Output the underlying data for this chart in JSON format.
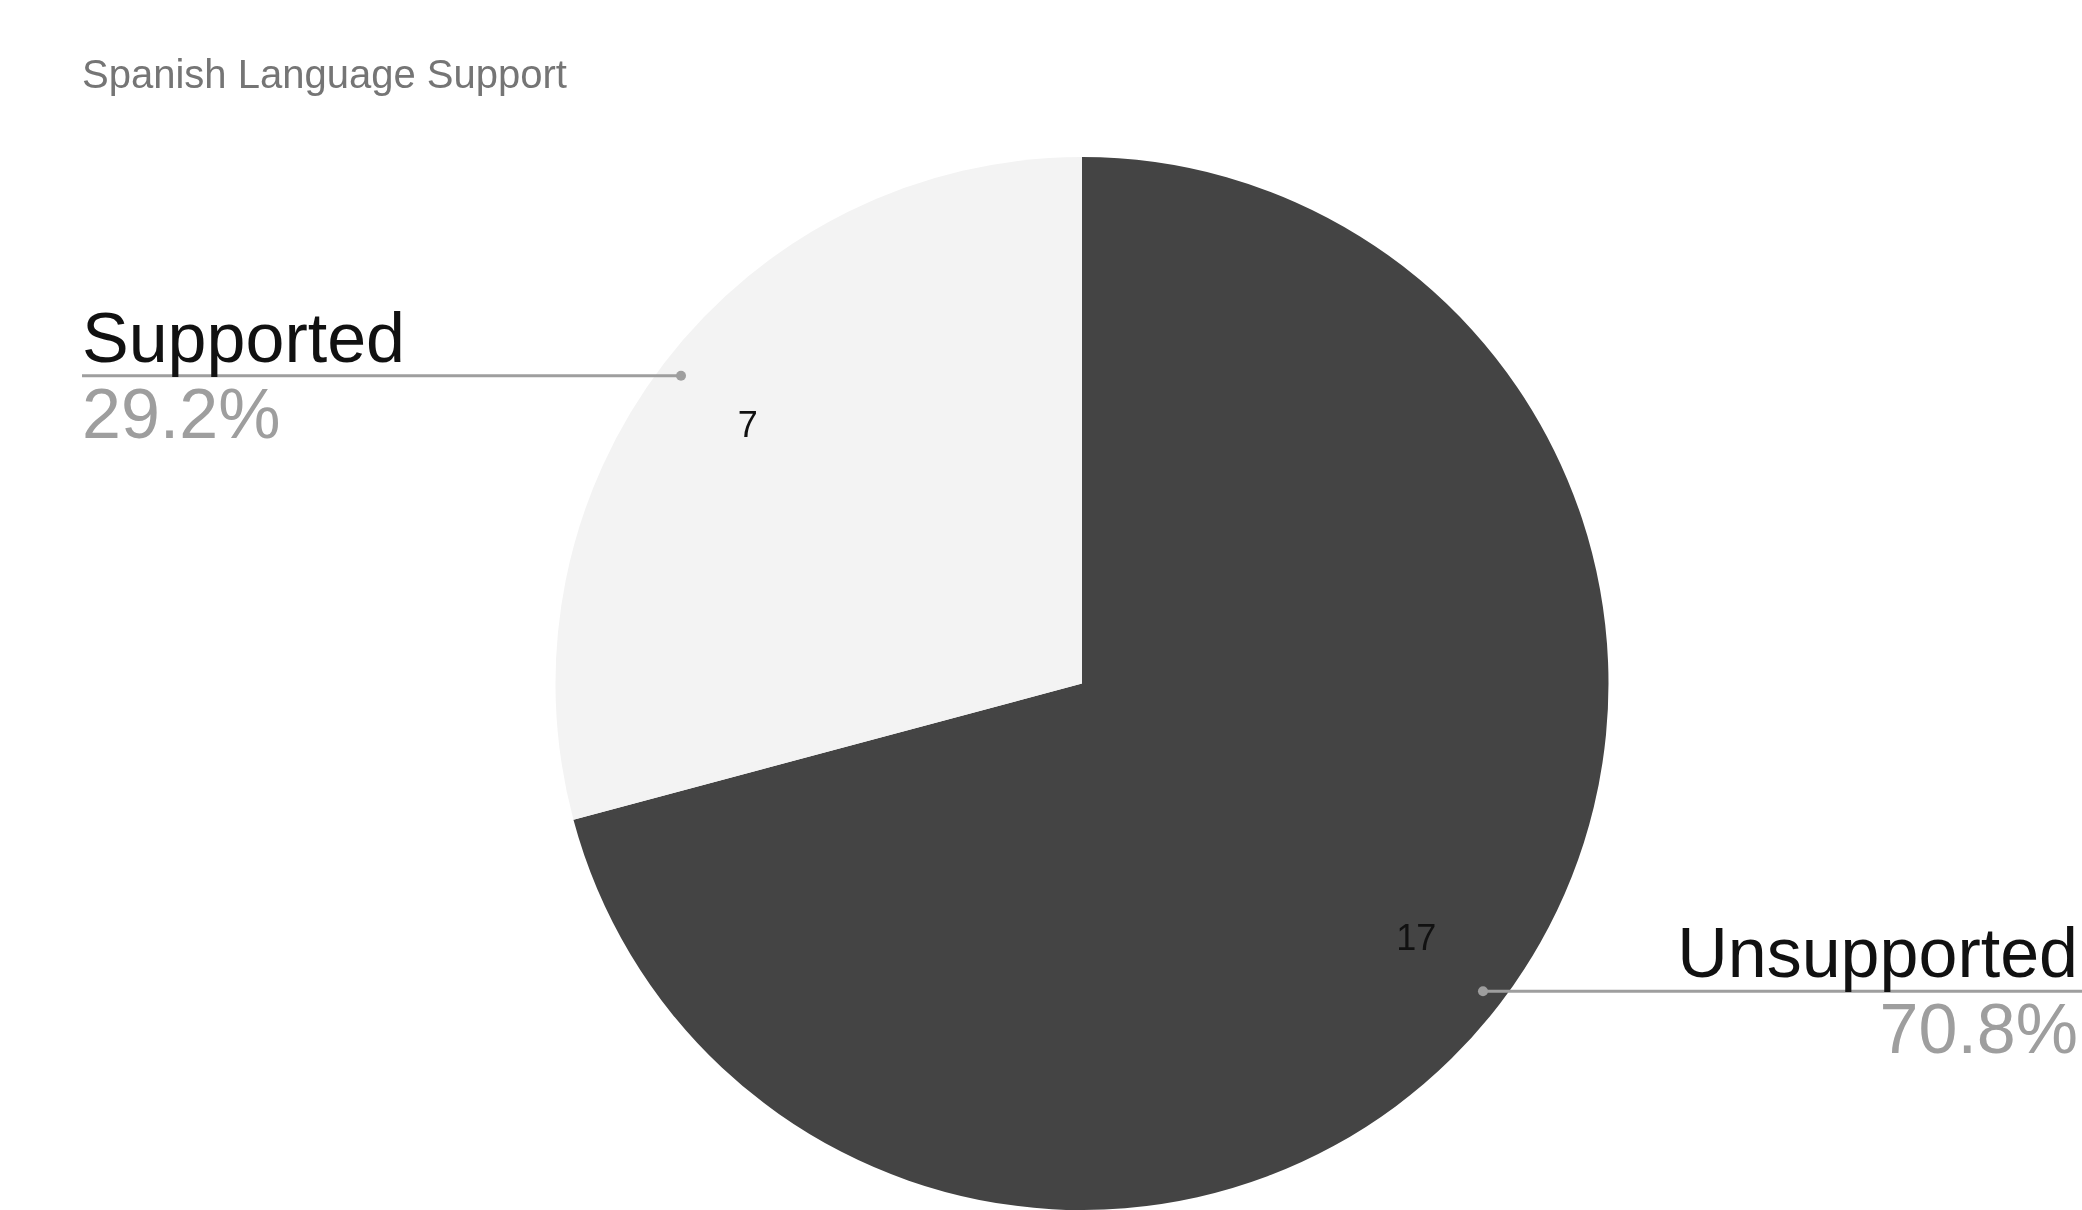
{
  "chart_data": {
    "type": "pie",
    "title": "Spanish Language Support",
    "categories": [
      "Unsupported",
      "Supported"
    ],
    "values": [
      17,
      7
    ],
    "colors": [
      "#444444",
      "#f3f3f3"
    ],
    "data_labels": true,
    "legend": false,
    "annotations": [
      {
        "text": "70.8%",
        "x": "Unsupported"
      },
      {
        "text": "29.2%",
        "x": "Supported"
      }
    ]
  }
}
